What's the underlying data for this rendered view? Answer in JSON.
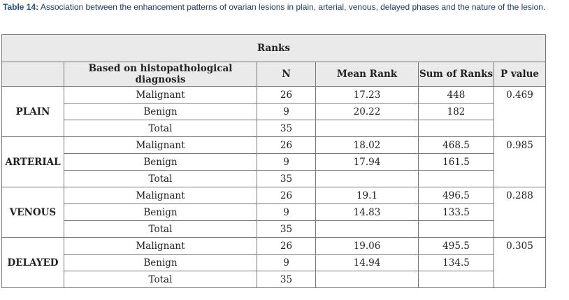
{
  "caption": {
    "label": "Table 14:",
    "text": " Association between the enhancement patterns of ovarian lesions in plain, arterial, venous, delayed phases and the nature of the lesion."
  },
  "table": {
    "super_header": "Ranks",
    "headers": {
      "basis": "Based on histopathological diagnosis",
      "n": "N",
      "mean_rank": "Mean Rank",
      "sum_ranks": "Sum of Ranks",
      "p_value": "P value"
    },
    "phases": [
      {
        "name": "PLAIN",
        "p_value": "0.469",
        "rows": [
          {
            "group": "Malignant",
            "n": "26",
            "mean_rank": "17.23",
            "sum_ranks": "448"
          },
          {
            "group": "Benign",
            "n": "9",
            "mean_rank": "20.22",
            "sum_ranks": "182"
          },
          {
            "group": "Total",
            "n": "35",
            "mean_rank": "",
            "sum_ranks": ""
          }
        ]
      },
      {
        "name": "ARTERIAL",
        "p_value": "0.985",
        "rows": [
          {
            "group": "Malignant",
            "n": "26",
            "mean_rank": "18.02",
            "sum_ranks": "468.5"
          },
          {
            "group": "Benign",
            "n": "9",
            "mean_rank": "17.94",
            "sum_ranks": "161.5"
          },
          {
            "group": "Total",
            "n": "35",
            "mean_rank": "",
            "sum_ranks": ""
          }
        ]
      },
      {
        "name": "VENOUS",
        "p_value": "0.288",
        "rows": [
          {
            "group": "Malignant",
            "n": "26",
            "mean_rank": "19.1",
            "sum_ranks": "496.5"
          },
          {
            "group": "Benign",
            "n": "9",
            "mean_rank": "14.83",
            "sum_ranks": "133.5"
          },
          {
            "group": "Total",
            "n": "35",
            "mean_rank": "",
            "sum_ranks": ""
          }
        ]
      },
      {
        "name": "DELAYED",
        "p_value": "0.305",
        "rows": [
          {
            "group": "Malignant",
            "n": "26",
            "mean_rank": "19.06",
            "sum_ranks": "495.5"
          },
          {
            "group": "Benign",
            "n": "9",
            "mean_rank": "14.94",
            "sum_ranks": "134.5"
          },
          {
            "group": "Total",
            "n": "35",
            "mean_rank": "",
            "sum_ranks": ""
          }
        ]
      }
    ]
  }
}
